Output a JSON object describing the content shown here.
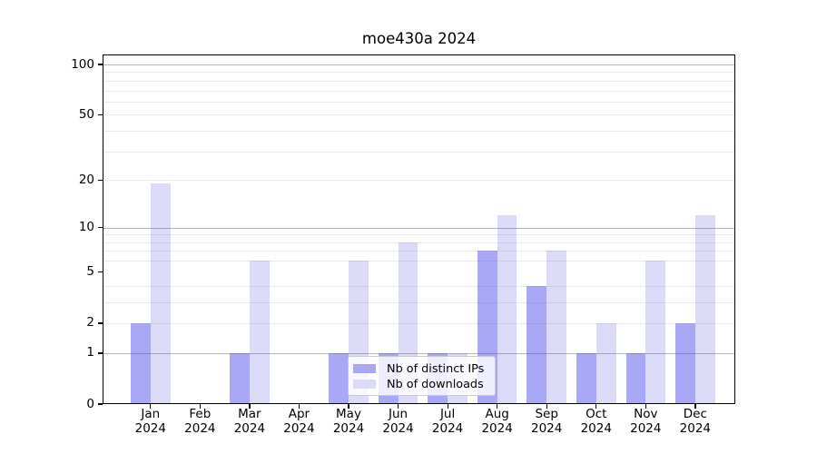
{
  "figure": {
    "title": "moe430a 2024"
  },
  "chart_data": {
    "type": "bar",
    "title": "moe430a 2024",
    "categories": [
      "Jan 2024",
      "Feb 2024",
      "Mar 2024",
      "Apr 2024",
      "May 2024",
      "Jun 2024",
      "Jul 2024",
      "Aug 2024",
      "Sep 2024",
      "Oct 2024",
      "Nov 2024",
      "Dec 2024"
    ],
    "series": [
      {
        "name": "Nb of distinct IPs",
        "color": "#a8a8f6",
        "values": [
          2,
          0,
          1,
          0,
          1,
          1,
          1,
          7,
          4,
          1,
          1,
          2
        ]
      },
      {
        "name": "Nb of downloads",
        "color": "#dbdbf8",
        "values": [
          19,
          0,
          6,
          0,
          6,
          8,
          1,
          12,
          7,
          2,
          6,
          12
        ]
      }
    ],
    "xlabel": "",
    "ylabel": "",
    "yscale": "log1p",
    "ylim": [
      0,
      115
    ],
    "y_tick_values": [
      0,
      1,
      2,
      5,
      10,
      20,
      50,
      100
    ],
    "y_tick_labels": [
      "0",
      "1",
      "2",
      "5",
      "10",
      "20",
      "50",
      "100"
    ],
    "y_major_gridlines": [
      1,
      10,
      100
    ],
    "y_minor_gridlines": [
      2,
      3,
      4,
      6,
      7,
      8,
      9,
      20,
      30,
      40,
      50,
      60,
      70,
      80,
      90
    ],
    "grid": true,
    "legend": {
      "position": "lower center",
      "items": [
        "Nb of distinct IPs",
        "Nb of downloads"
      ]
    }
  }
}
